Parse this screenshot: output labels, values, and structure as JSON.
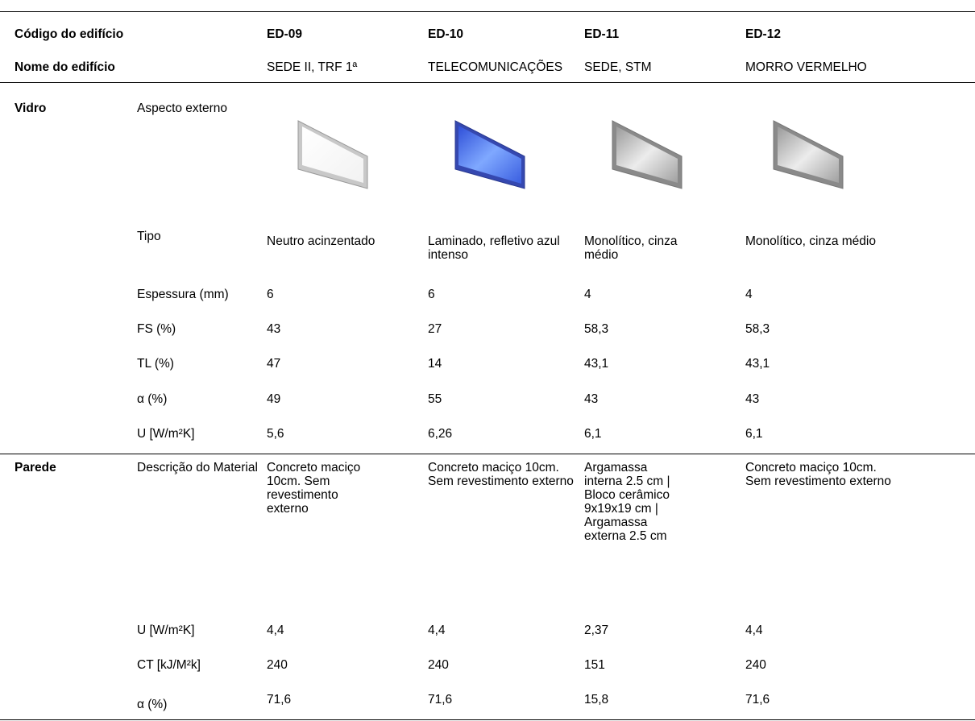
{
  "table": {
    "header": [
      "Código do edifício",
      "ED-09",
      "ED-10",
      "ED-11",
      "ED-12"
    ],
    "names": {
      "label": "Nome do edifício",
      "values": [
        "SEDE II, TRF 1ª",
        "TELECOMUNICAÇÕES",
        "SEDE, STM",
        "MORRO VERMELHO"
      ]
    },
    "groups": [
      {
        "name": "Vidro",
        "rows": [
          {
            "label": "Aspecto externo"
          },
          {
            "label": "Tipo",
            "values": [
              "Neutro acinzentado",
              "Laminado, refletivo azul intenso",
              "Monolítico, cinza médio",
              "Monolítico, cinza médio"
            ]
          },
          {
            "label": "Espessura (mm)",
            "values": [
              "6",
              "6",
              "4",
              "4"
            ]
          },
          {
            "label": "FS (%)",
            "values": [
              "43",
              "27",
              "58,3",
              "58,3"
            ]
          },
          {
            "label": "TL (%)",
            "values": [
              "47",
              "14",
              "43,1",
              "43,1"
            ]
          },
          {
            "label": "α (%)",
            "values": [
              "49",
              "55",
              "43",
              "43"
            ]
          },
          {
            "label": "U [W/m²K]",
            "values": [
              "5,6",
              "6,26",
              "6,1",
              "6,1"
            ]
          }
        ]
      },
      {
        "name": "Parede",
        "rows": [
          {
            "label": "Descrição do Material",
            "values": [
              "Concreto maciço 10cm. Sem revestimento externo",
              "Concreto maciço 10cm. Sem revestimento externo",
              "Argamassa interna 2.5 cm | Bloco cerâmico 9x19x19 cm | Argamassa externa 2.5 cm",
              "Concreto maciço 10cm. Sem revestimento externo"
            ]
          },
          {
            "label": "U [W/m²K]",
            "values": [
              "4,4",
              "4,4",
              "2,37",
              "4,4"
            ]
          },
          {
            "label": "CT [kJ/M²k]",
            "values": [
              "240",
              "240",
              "151",
              "240"
            ]
          },
          {
            "label": "α (%)",
            "values": [
              "71,6",
              "71,6",
              "15,8",
              "71,6"
            ]
          }
        ]
      }
    ]
  }
}
